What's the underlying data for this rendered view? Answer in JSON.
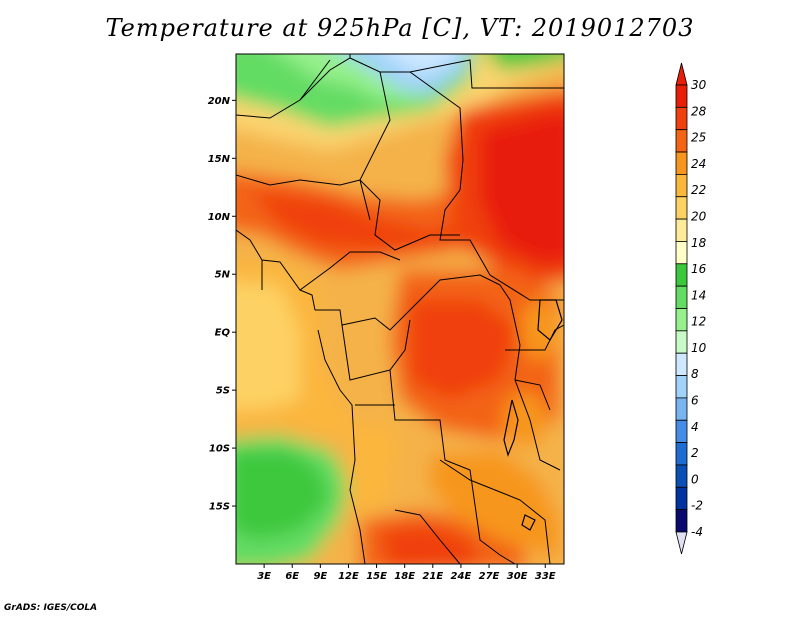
{
  "title": "Temperature at 925hPa [C], VT: 2019012703",
  "credit": "GrADS: IGES/COLA",
  "map": {
    "lon_range": [
      0,
      35
    ],
    "lat_range": [
      -20,
      24
    ],
    "lat_ticks": [
      {
        "value": 20,
        "label": "20N"
      },
      {
        "value": 15,
        "label": "15N"
      },
      {
        "value": 10,
        "label": "10N"
      },
      {
        "value": 5,
        "label": "5N"
      },
      {
        "value": 0,
        "label": "EQ"
      },
      {
        "value": -5,
        "label": "5S"
      },
      {
        "value": -10,
        "label": "10S"
      },
      {
        "value": -15,
        "label": "15S"
      }
    ],
    "lon_ticks": [
      {
        "value": 3,
        "label": "3E"
      },
      {
        "value": 6,
        "label": "6E"
      },
      {
        "value": 9,
        "label": "9E"
      },
      {
        "value": 12,
        "label": "12E"
      },
      {
        "value": 15,
        "label": "15E"
      },
      {
        "value": 18,
        "label": "18E"
      },
      {
        "value": 21,
        "label": "21E"
      },
      {
        "value": 24,
        "label": "24E"
      },
      {
        "value": 27,
        "label": "27E"
      },
      {
        "value": 30,
        "label": "30E"
      },
      {
        "value": 33,
        "label": "33E"
      }
    ]
  },
  "colorbar": {
    "labels": [
      "30",
      "28",
      "25",
      "24",
      "22",
      "20",
      "18",
      "16",
      "14",
      "12",
      "10",
      "8",
      "6",
      "4",
      "2",
      "0",
      "-2",
      "-4"
    ],
    "colors": [
      "#e81e0a",
      "#f04010",
      "#f36415",
      "#f7961e",
      "#fbb63c",
      "#fdd164",
      "#fcec9a",
      "#ffffc8",
      "#3cc83c",
      "#64dc64",
      "#96f08c",
      "#c8fac8",
      "#cde8ff",
      "#a0d2fa",
      "#78b4f0",
      "#468ce6",
      "#1e6ed2",
      "#0a50b4",
      "#0032a0",
      "#0a0a6e"
    ],
    "top_arrow_color": "#e81e0a",
    "bottom_arrow_color": "#e0e0f5"
  }
}
